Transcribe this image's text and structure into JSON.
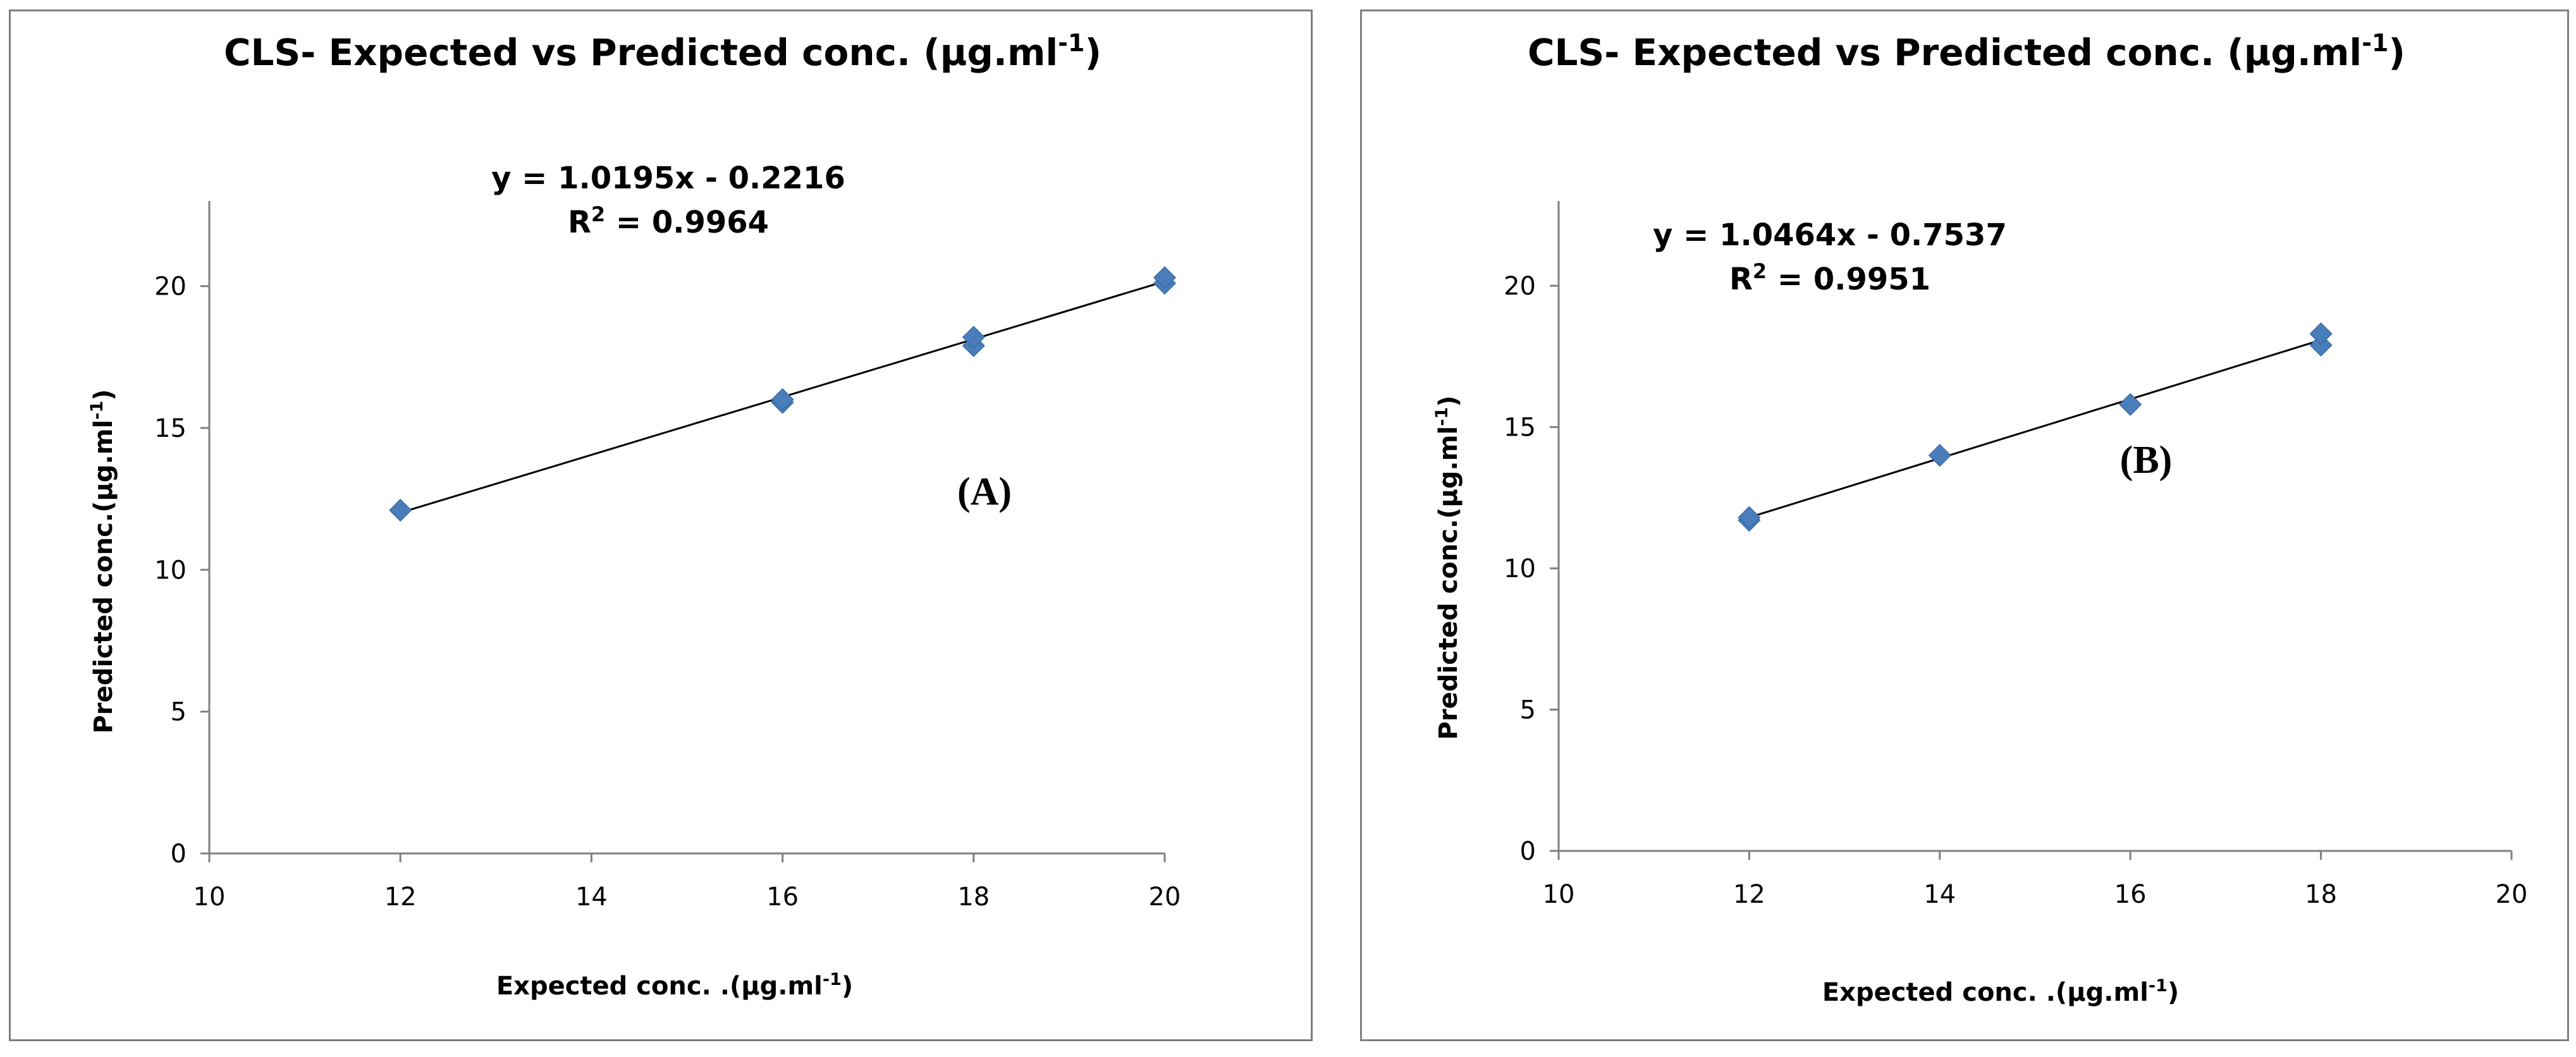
{
  "chart_data": [
    {
      "type": "scatter",
      "id": "A",
      "title": "CLS- Expected vs Predicted conc. (µg.ml",
      "title_sup": "-1",
      "title_close": ")",
      "xlabel": "Expected conc. .(µg.ml",
      "xlabel_sup": "-1",
      "xlabel_close": ")",
      "ylabel": "Predicted conc.(µg.ml",
      "ylabel_sup": "-1",
      "ylabel_close": ")",
      "xlim": [
        10,
        20
      ],
      "ylim": [
        0,
        23
      ],
      "xticks": [
        "10",
        "12",
        "14",
        "16",
        "18",
        "20"
      ],
      "yticks": [
        "0",
        "5",
        "10",
        "15",
        "20"
      ],
      "points": [
        {
          "x": 12,
          "y": 12.1
        },
        {
          "x": 16,
          "y": 15.9
        },
        {
          "x": 16,
          "y": 16.0
        },
        {
          "x": 18,
          "y": 17.9
        },
        {
          "x": 18,
          "y": 18.2
        },
        {
          "x": 20,
          "y": 20.1
        },
        {
          "x": 20,
          "y": 20.3
        }
      ],
      "trendline": {
        "slope": 1.0195,
        "intercept": -0.2216,
        "x_range": [
          12,
          20
        ]
      },
      "equation": "y = 1.0195x - 0.2216",
      "r2_prefix": "R",
      "r2_sup": "2",
      "r2_value": " = 0.9964",
      "panel_label": "(A)",
      "marker_color": "#4a7ebb",
      "line_color": "#000000"
    },
    {
      "type": "scatter",
      "id": "B",
      "title": "CLS- Expected vs Predicted conc. (µg.ml",
      "title_sup": "-1",
      "title_close": ")",
      "xlabel": "Expected conc. .(µg.ml",
      "xlabel_sup": "-1",
      "xlabel_close": ")",
      "ylabel": "Predicted conc.(µg.ml",
      "ylabel_sup": "-1",
      "ylabel_close": ")",
      "xlim": [
        10,
        20
      ],
      "ylim": [
        0,
        23
      ],
      "xticks": [
        "10",
        "12",
        "14",
        "16",
        "18",
        "20"
      ],
      "yticks": [
        "0",
        "5",
        "10",
        "15",
        "20"
      ],
      "points": [
        {
          "x": 12,
          "y": 11.7
        },
        {
          "x": 12,
          "y": 11.8
        },
        {
          "x": 14,
          "y": 14.0
        },
        {
          "x": 16,
          "y": 15.8
        },
        {
          "x": 18,
          "y": 17.9
        },
        {
          "x": 18,
          "y": 18.3
        }
      ],
      "trendline": {
        "slope": 1.0464,
        "intercept": -0.7537,
        "x_range": [
          12,
          18
        ]
      },
      "equation": "y = 1.0464x - 0.7537",
      "r2_prefix": "R",
      "r2_sup": "2",
      "r2_value": " = 0.9951",
      "panel_label": "(B)",
      "marker_color": "#4a7ebb",
      "line_color": "#000000"
    }
  ]
}
